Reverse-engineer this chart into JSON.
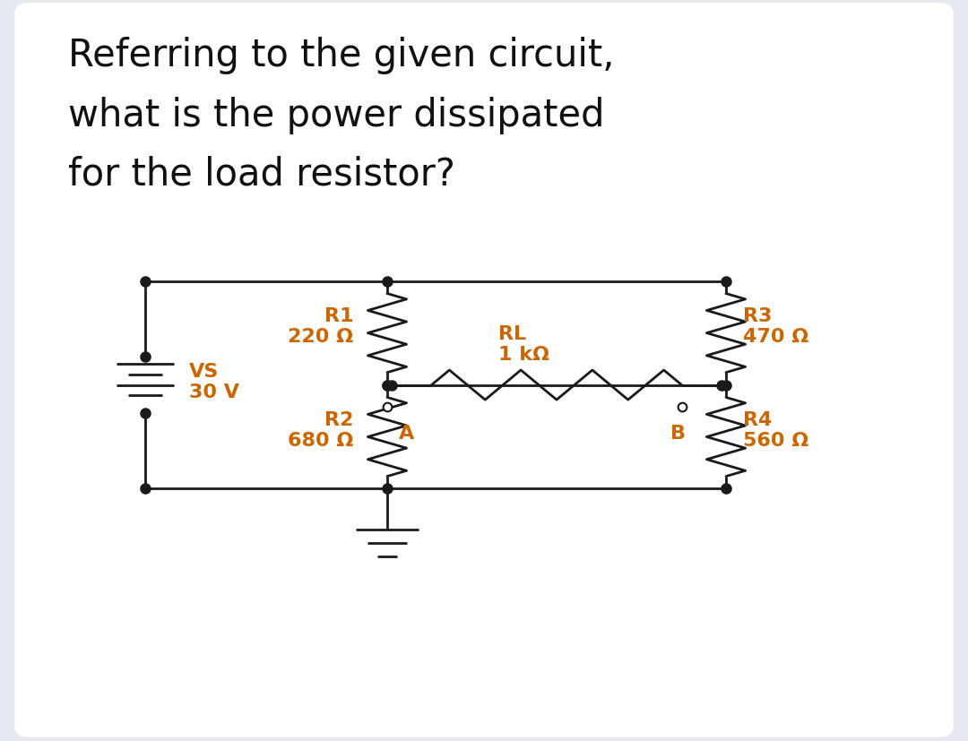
{
  "title_lines": [
    "Referring to the given circuit,",
    "what is the power dissipated",
    "for the load resistor?"
  ],
  "title_fontsize": 30,
  "background_color": "#e8e8f0",
  "card_color": "#ffffff",
  "circuit_color": "#1a1a1a",
  "resistor_color": "#1a1a1a",
  "label_color": "#cc6600",
  "line_width": 2.0,
  "dot_size": 8,
  "open_dot_size": 7,
  "labels": {
    "VS": "VS\n30 V",
    "R1": "R1\n220 Ω",
    "R2": "R2\n680 Ω",
    "RL": "RL\n1 kΩ",
    "R3": "R3\n470 Ω",
    "R4": "R4\n560 Ω",
    "A": "A",
    "B": "B"
  },
  "label_fontsize": 16
}
